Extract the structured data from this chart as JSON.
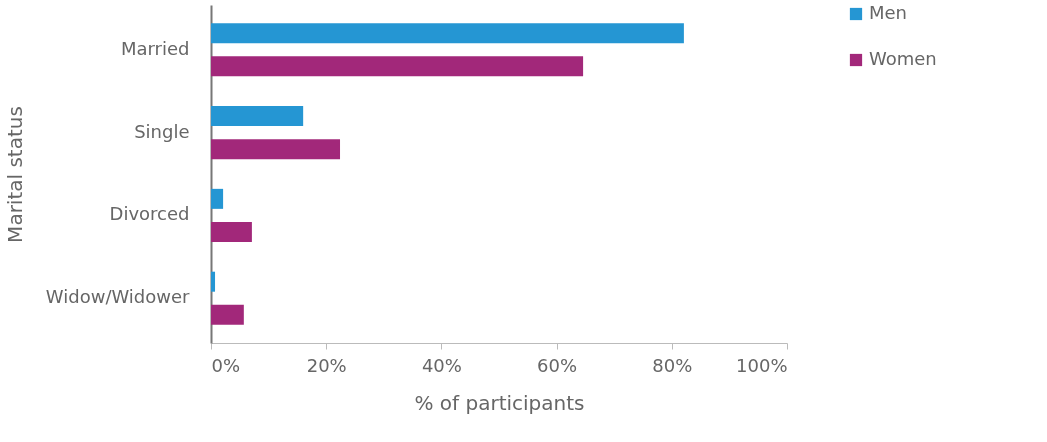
{
  "chart_data": {
    "type": "bar",
    "orientation": "horizontal",
    "xlabel": "% of participants",
    "ylabel": "Marital status",
    "categories": [
      "Married",
      "Single",
      "Divorced",
      "Widow/Widower"
    ],
    "series": [
      {
        "name": "Men",
        "color": "#2596d3",
        "values": [
          82.1,
          16.0,
          2.1,
          0.7
        ]
      },
      {
        "name": "Women",
        "color": "#a2287a",
        "values": [
          64.6,
          22.4,
          7.1,
          5.7
        ]
      }
    ],
    "xlim": [
      0,
      100
    ],
    "xticks": [
      {
        "value": 0,
        "label": "0%"
      },
      {
        "value": 20,
        "label": "20%"
      },
      {
        "value": 40,
        "label": "40%"
      },
      {
        "value": 60,
        "label": "60%"
      },
      {
        "value": 80,
        "label": "80%"
      },
      {
        "value": 100,
        "label": "100%"
      }
    ],
    "grid": false,
    "legend": "right"
  }
}
